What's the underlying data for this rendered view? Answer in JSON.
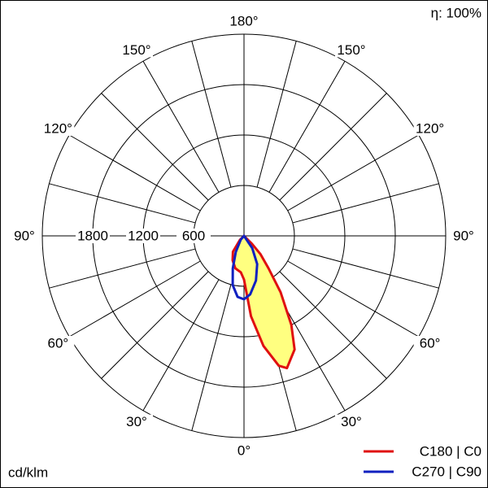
{
  "chart_data": {
    "type": "polar",
    "efficiency_label": "η: 100%",
    "unit_label": "cd/klm",
    "rlim": [
      0,
      2400
    ],
    "rticks": [
      600,
      1200,
      1800
    ],
    "thetaticks": [
      {
        "value": 0,
        "label": "0°"
      },
      {
        "value": 30,
        "label": "30°"
      },
      {
        "value": 60,
        "label": "60°"
      },
      {
        "value": 90,
        "label": "90°"
      },
      {
        "value": 120,
        "label": "120°"
      },
      {
        "value": 150,
        "label": "150°"
      },
      {
        "value": 180,
        "label": "180°"
      }
    ],
    "series": [
      {
        "name": "C180 | C0",
        "color": "#e01010",
        "fill": "#ffff80",
        "theta": [
          -60,
          -45,
          -35,
          -25,
          -15,
          -5,
          0,
          5,
          10,
          15,
          18,
          24,
          28,
          33,
          37,
          42,
          45,
          60
        ],
        "values": [
          0,
          70,
          230,
          320,
          400,
          435,
          520,
          960,
          1330,
          1600,
          1655,
          1480,
          1200,
          800,
          485,
          290,
          135,
          0
        ]
      },
      {
        "name": "C270 | C90",
        "color": "#1020c0",
        "theta": [
          -60,
          -40,
          -27,
          -19,
          -13,
          -6,
          0,
          6,
          15,
          25,
          34,
          60
        ],
        "values": [
          0,
          60,
          215,
          410,
          600,
          730,
          755,
          700,
          550,
          370,
          175,
          0
        ]
      }
    ]
  }
}
